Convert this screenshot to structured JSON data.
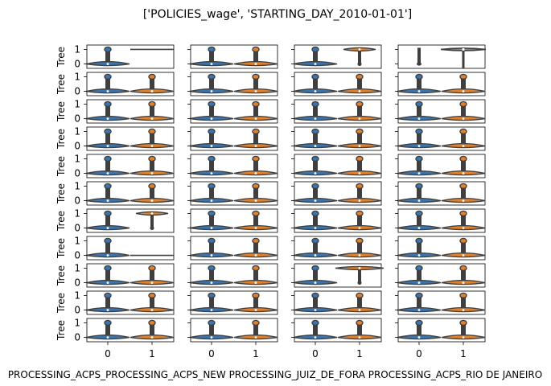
{
  "chart_data": {
    "type": "violin",
    "title": "['POLICIES_wage', 'STARTING_DAY_2010-01-01']",
    "grid": "4 columns x 11 rows of small violin-plot panels",
    "ylabel": "Tree",
    "xticks": [
      "0",
      "1"
    ],
    "yticks": [
      "0",
      "1"
    ],
    "ylim": [
      -0.3,
      1.3
    ],
    "colors": {
      "group_0": "#3a75af",
      "group_1": "#e1812c",
      "outline": "#3f3f3f"
    },
    "columns": [
      {
        "xlabel": "PROCESSING_ACPS_PROCESSING_ACPS_NEW"
      },
      {
        "xlabel": "PROCESSING_ACPS_PROCESSING_ACPS_NEW"
      },
      {
        "xlabel": "PROCESSING_JUIZ_DE_FORA"
      },
      {
        "xlabel": "PROCESSING_ACPS_RIO DE JANEIRO"
      }
    ],
    "panels": [
      [
        "flat1",
        "both",
        "top1",
        "tallLine"
      ],
      [
        "both",
        "both",
        "both",
        "both"
      ],
      [
        "both",
        "both",
        "both",
        "both"
      ],
      [
        "both",
        "both",
        "both",
        "both"
      ],
      [
        "both",
        "both",
        "both",
        "both"
      ],
      [
        "both",
        "both",
        "both",
        "both"
      ],
      [
        "top1",
        "both",
        "both",
        "both"
      ],
      [
        "flat0",
        "both",
        "both",
        "both"
      ],
      [
        "both",
        "both",
        "topWide",
        "both"
      ],
      [
        "both",
        "both",
        "both",
        "both"
      ],
      [
        "both",
        "both",
        "both",
        "both"
      ]
    ]
  },
  "xlabels_text": {
    "full": "PROCESSING_ACPS_PROCESSING_ACPS_NEW PROCESSING_JUIZ_DE_FORA PROCESSING_ACPS_RIO DE JANEIRO"
  }
}
